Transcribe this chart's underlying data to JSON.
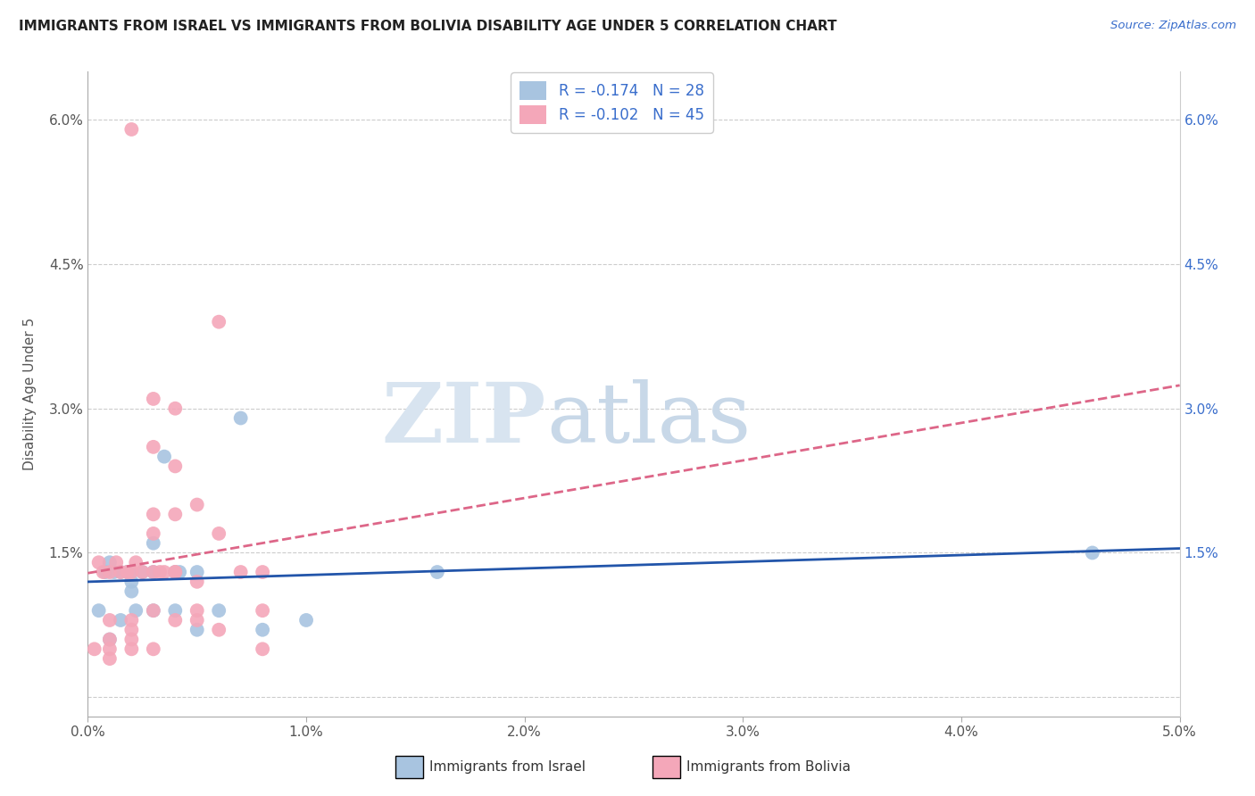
{
  "title": "IMMIGRANTS FROM ISRAEL VS IMMIGRANTS FROM BOLIVIA DISABILITY AGE UNDER 5 CORRELATION CHART",
  "source": "Source: ZipAtlas.com",
  "ylabel": "Disability Age Under 5",
  "x_tick_labels": [
    "0.0%",
    "1.0%",
    "2.0%",
    "3.0%",
    "4.0%",
    "5.0%"
  ],
  "x_tick_values": [
    0.0,
    0.01,
    0.02,
    0.03,
    0.04,
    0.05
  ],
  "y_tick_labels": [
    "",
    "1.5%",
    "3.0%",
    "4.5%",
    "6.0%"
  ],
  "y_tick_values": [
    0.0,
    0.015,
    0.03,
    0.045,
    0.06
  ],
  "xlim": [
    0.0,
    0.05
  ],
  "ylim": [
    -0.002,
    0.065
  ],
  "israel_color": "#a8c4e0",
  "bolivia_color": "#f4a7b9",
  "israel_line_color": "#2255aa",
  "bolivia_line_color": "#dd6688",
  "israel_R": -0.174,
  "israel_N": 28,
  "bolivia_R": -0.102,
  "bolivia_N": 45,
  "israel_scatter_x": [
    0.0005,
    0.0008,
    0.001,
    0.001,
    0.0012,
    0.0015,
    0.0015,
    0.0018,
    0.002,
    0.002,
    0.002,
    0.0022,
    0.0025,
    0.003,
    0.003,
    0.003,
    0.0035,
    0.004,
    0.004,
    0.0042,
    0.005,
    0.005,
    0.006,
    0.007,
    0.008,
    0.01,
    0.016,
    0.046
  ],
  "israel_scatter_y": [
    0.009,
    0.013,
    0.006,
    0.014,
    0.013,
    0.013,
    0.008,
    0.013,
    0.012,
    0.011,
    0.013,
    0.009,
    0.013,
    0.016,
    0.013,
    0.009,
    0.025,
    0.013,
    0.009,
    0.013,
    0.013,
    0.007,
    0.009,
    0.029,
    0.007,
    0.008,
    0.013,
    0.015
  ],
  "bolivia_scatter_x": [
    0.0003,
    0.0005,
    0.0007,
    0.001,
    0.001,
    0.001,
    0.001,
    0.001,
    0.0013,
    0.0015,
    0.0018,
    0.002,
    0.002,
    0.002,
    0.002,
    0.002,
    0.002,
    0.0022,
    0.0025,
    0.003,
    0.003,
    0.003,
    0.003,
    0.003,
    0.003,
    0.003,
    0.0033,
    0.0035,
    0.004,
    0.004,
    0.004,
    0.004,
    0.004,
    0.004,
    0.005,
    0.005,
    0.005,
    0.005,
    0.006,
    0.006,
    0.006,
    0.007,
    0.008,
    0.008,
    0.008
  ],
  "bolivia_scatter_y": [
    0.005,
    0.014,
    0.013,
    0.008,
    0.013,
    0.006,
    0.005,
    0.004,
    0.014,
    0.013,
    0.013,
    0.059,
    0.013,
    0.008,
    0.007,
    0.006,
    0.005,
    0.014,
    0.013,
    0.031,
    0.026,
    0.019,
    0.017,
    0.013,
    0.009,
    0.005,
    0.013,
    0.013,
    0.024,
    0.019,
    0.03,
    0.013,
    0.013,
    0.008,
    0.02,
    0.012,
    0.009,
    0.008,
    0.039,
    0.017,
    0.007,
    0.013,
    0.013,
    0.009,
    0.005
  ],
  "watermark_zip": "ZIP",
  "watermark_atlas": "atlas",
  "legend_label_israel": "Immigrants from Israel",
  "legend_label_bolivia": "Immigrants from Bolivia",
  "background_color": "#ffffff",
  "grid_color": "#cccccc"
}
